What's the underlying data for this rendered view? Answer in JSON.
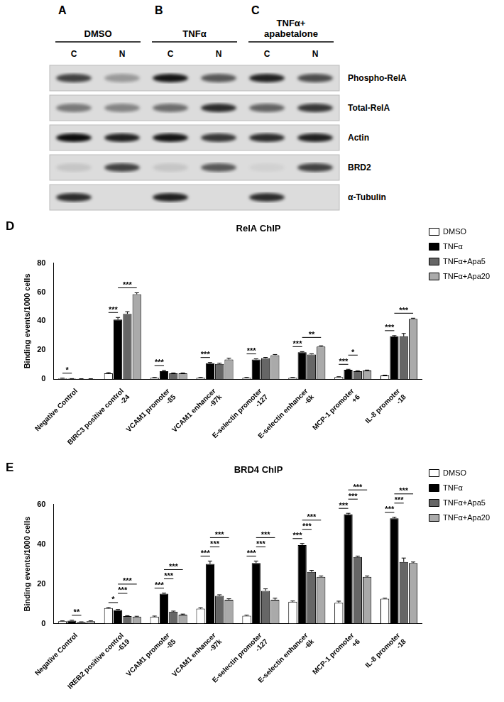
{
  "blot": {
    "panels": [
      {
        "letter": "A",
        "label": "DMSO"
      },
      {
        "letter": "B",
        "label": "TNFα"
      },
      {
        "letter": "C",
        "label": "TNFα+\napabetalone"
      }
    ],
    "lanes": [
      "C",
      "N",
      "C",
      "N",
      "C",
      "N"
    ],
    "rows": [
      {
        "name": "Phospho-RelA",
        "intensity": [
          0.7,
          0.3,
          0.9,
          0.6,
          0.85,
          0.65
        ]
      },
      {
        "name": "Total-RelA",
        "intensity": [
          0.45,
          0.4,
          0.5,
          0.8,
          0.55,
          0.75
        ]
      },
      {
        "name": "Actin",
        "intensity": [
          0.95,
          0.85,
          0.9,
          0.75,
          0.8,
          0.85
        ]
      },
      {
        "name": "BRD2",
        "intensity": [
          0.1,
          0.7,
          0.1,
          0.6,
          0.05,
          0.7
        ]
      },
      {
        "name": "α-Tubulin",
        "intensity": [
          0.8,
          0,
          0.85,
          0,
          0.8,
          0
        ]
      }
    ]
  },
  "chart_data": [
    {
      "type": "bar",
      "panel": "D",
      "title": "RelA ChIP",
      "y_label": "Binding events/1000 cells",
      "categories": [
        "Negative Control",
        "BIRC3 positive control",
        "VCAM1 promoter",
        "VCAM1 enhancer",
        "E-selectin promoter",
        "E-selectin enhancer",
        "MCP-1 promoter",
        "IL-8 promoter"
      ],
      "positions": [
        null,
        "-24",
        "-85",
        "-97k",
        "-127",
        "-6k",
        "+6",
        "-18"
      ],
      "series": [
        {
          "name": "DMSO",
          "color": "#ffffff",
          "values": [
            0.5,
            4,
            1,
            1,
            1,
            1,
            1.5,
            2.5
          ],
          "errors": [
            0.2,
            0.5,
            0.2,
            0.2,
            0.2,
            0.2,
            0.2,
            0.3
          ]
        },
        {
          "name": "TNFα",
          "color": "#000000",
          "values": [
            0.3,
            41,
            5.5,
            11,
            13.5,
            18.5,
            6.5,
            29.5
          ],
          "errors": [
            0.1,
            1.5,
            0.5,
            0.5,
            0.5,
            0.5,
            0.3,
            0.5
          ]
        },
        {
          "name": "TNFα+Apa5",
          "color": "#666666",
          "values": [
            0.2,
            45,
            4,
            10.5,
            14.5,
            17,
            5.5,
            29.5
          ],
          "errors": [
            0.1,
            1.5,
            0.3,
            0.5,
            0.5,
            0.5,
            0.3,
            2
          ]
        },
        {
          "name": "TNFα+Apa20",
          "color": "#aaaaaa",
          "values": [
            0.2,
            58.5,
            4,
            13.5,
            16.5,
            22.5,
            6,
            41.5
          ],
          "errors": [
            0.1,
            1,
            0.3,
            1,
            0.5,
            0.5,
            0.3,
            0.5
          ]
        }
      ],
      "comparisons": [
        {
          "category": 0,
          "from": 0,
          "to": 1,
          "label": "*"
        },
        {
          "category": 1,
          "from": 0,
          "to": 1,
          "label": "***"
        },
        {
          "category": 1,
          "from": 1,
          "to": 3,
          "label": "***"
        },
        {
          "category": 2,
          "from": 0,
          "to": 1,
          "label": "***"
        },
        {
          "category": 3,
          "from": 0,
          "to": 1,
          "label": "***"
        },
        {
          "category": 4,
          "from": 0,
          "to": 1,
          "label": "***"
        },
        {
          "category": 5,
          "from": 0,
          "to": 1,
          "label": "***"
        },
        {
          "category": 5,
          "from": 1,
          "to": 3,
          "label": "**"
        },
        {
          "category": 6,
          "from": 0,
          "to": 1,
          "label": "***"
        },
        {
          "category": 6,
          "from": 1,
          "to": 2,
          "label": "*"
        },
        {
          "category": 7,
          "from": 0,
          "to": 1,
          "label": "***"
        },
        {
          "category": 7,
          "from": 1,
          "to": 3,
          "label": "***"
        }
      ],
      "ylim": [
        0,
        80
      ],
      "yticks": [
        0,
        20,
        40,
        60,
        80
      ],
      "grid": false,
      "legend": "right"
    },
    {
      "type": "bar",
      "panel": "E",
      "title": "BRD4 ChIP",
      "y_label": "Binding events/1000 cells",
      "categories": [
        "Negative Control",
        "IREB2 positive control",
        "VCAM1 promoter",
        "VCAM1 enhancer",
        "E-selectin promoter",
        "E-selectin enhancer",
        "MCP-1 promoter",
        "IL-8 promoter"
      ],
      "positions": [
        null,
        "-619",
        "-85",
        "-97k",
        "-127",
        "-6k",
        "+6",
        "-18"
      ],
      "series": [
        {
          "name": "DMSO",
          "color": "#ffffff",
          "values": [
            1.2,
            7.8,
            3.5,
            7.5,
            4,
            11,
            10.5,
            12.5
          ],
          "errors": [
            0.2,
            0.3,
            0.3,
            0.5,
            0.3,
            0.4,
            0.8,
            0.3
          ]
        },
        {
          "name": "TNFα",
          "color": "#000000",
          "values": [
            1.5,
            6.8,
            15,
            30,
            30.5,
            39.5,
            55,
            53
          ],
          "errors": [
            0.2,
            0.3,
            0.4,
            1.5,
            1,
            0.8,
            0.5,
            0.5
          ]
        },
        {
          "name": "TNFα+Apa5",
          "color": "#666666",
          "values": [
            0.8,
            3.8,
            6,
            14,
            16.5,
            26,
            33.5,
            31
          ],
          "errors": [
            0.1,
            0.2,
            0.3,
            0.5,
            1,
            0.8,
            0.5,
            2
          ]
        },
        {
          "name": "TNFα+Apa20",
          "color": "#aaaaaa",
          "values": [
            1.2,
            3.5,
            4.5,
            12,
            12,
            23.5,
            23.5,
            30.5
          ],
          "errors": [
            0.2,
            0.2,
            0.3,
            0.5,
            0.8,
            0.5,
            0.5,
            0.5
          ]
        }
      ],
      "comparisons": [
        {
          "category": 0,
          "from": 1,
          "to": 2,
          "label": "**"
        },
        {
          "category": 1,
          "from": 0,
          "to": 1,
          "label": "*"
        },
        {
          "category": 1,
          "from": 1,
          "to": 2,
          "label": "***"
        },
        {
          "category": 1,
          "from": 1,
          "to": 3,
          "label": "***"
        },
        {
          "category": 2,
          "from": 0,
          "to": 1,
          "label": "***"
        },
        {
          "category": 2,
          "from": 1,
          "to": 2,
          "label": "***"
        },
        {
          "category": 2,
          "from": 1,
          "to": 3,
          "label": "***"
        },
        {
          "category": 3,
          "from": 0,
          "to": 1,
          "label": "***"
        },
        {
          "category": 3,
          "from": 1,
          "to": 2,
          "label": "***"
        },
        {
          "category": 3,
          "from": 1,
          "to": 3,
          "label": "***"
        },
        {
          "category": 4,
          "from": 0,
          "to": 1,
          "label": "***"
        },
        {
          "category": 4,
          "from": 1,
          "to": 2,
          "label": "***"
        },
        {
          "category": 4,
          "from": 1,
          "to": 3,
          "label": "***"
        },
        {
          "category": 5,
          "from": 0,
          "to": 1,
          "label": "***"
        },
        {
          "category": 5,
          "from": 1,
          "to": 2,
          "label": "***"
        },
        {
          "category": 5,
          "from": 1,
          "to": 3,
          "label": "***"
        },
        {
          "category": 6,
          "from": 0,
          "to": 1,
          "label": "***"
        },
        {
          "category": 6,
          "from": 1,
          "to": 2,
          "label": "***"
        },
        {
          "category": 6,
          "from": 1,
          "to": 3,
          "label": "***"
        },
        {
          "category": 7,
          "from": 0,
          "to": 1,
          "label": "***"
        },
        {
          "category": 7,
          "from": 1,
          "to": 2,
          "label": "***"
        },
        {
          "category": 7,
          "from": 1,
          "to": 3,
          "label": "***"
        }
      ],
      "ylim": [
        0,
        60
      ],
      "yticks": [
        0,
        20,
        40,
        60
      ],
      "grid": false,
      "legend": "right"
    }
  ]
}
